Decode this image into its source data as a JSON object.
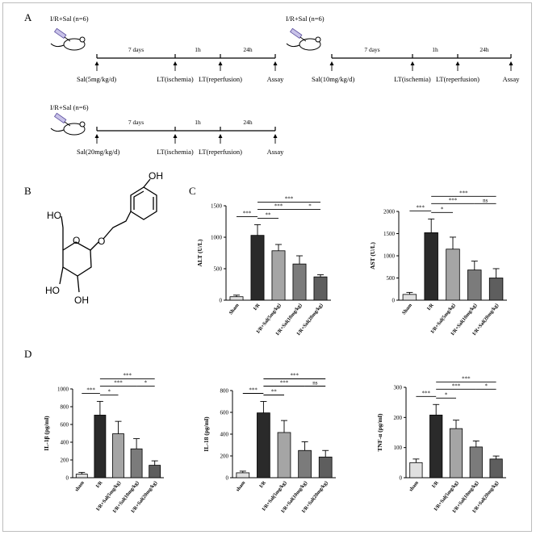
{
  "panel_labels": {
    "a": "A",
    "b": "B",
    "c": "C",
    "d": "D"
  },
  "timelines": [
    {
      "group": "I/R+Sal (n=6)",
      "dose": "Sal(5mg/kg/d)",
      "period1": "7 days",
      "period2": "1h",
      "period3": "24h",
      "ischemia": "LT(ischemia)",
      "reperfusion": "LT(reperfusion)",
      "assay": "Assay"
    },
    {
      "group": "I/R+Sal (n=6)",
      "dose": "Sal(10mg/kg/d)",
      "period1": "7 days",
      "period2": "1h",
      "period3": "24h",
      "ischemia": "LT(ischemia)",
      "reperfusion": "LT(reperfusion)",
      "assay": "Assay"
    },
    {
      "group": "I/R+Sal (n=6)",
      "dose": "Sal(20mg/kg/d)",
      "period1": "7 days",
      "period2": "1h",
      "period3": "24h",
      "ischemia": "LT(ischemia)",
      "reperfusion": "LT(reperfusion)",
      "assay": "Assay"
    }
  ],
  "structure_labels": {
    "ho1": "HO",
    "oh1": "OH",
    "ho2": "HO",
    "oh2": "OH",
    "o_ring": "O",
    "o_link": "O"
  },
  "chart_data": [
    {
      "type": "bar",
      "ylabel": "ALT (U/L)",
      "ylim": [
        0,
        1500
      ],
      "yticks": [
        0,
        500,
        1000,
        1500
      ],
      "categories": [
        "Sham",
        "I/R",
        "I/R+Sal(5mg/kg)",
        "I/R+Sal(10mg/kg)",
        "I/R+Sal(20mg/kg)"
      ],
      "values": [
        55,
        1030,
        785,
        575,
        370
      ],
      "errors": [
        25,
        170,
        100,
        130,
        35
      ],
      "colors": [
        "#e0e0e0",
        "#2a2a2a",
        "#a5a5a5",
        "#7b7b7b",
        "#5e5e5e"
      ],
      "significance": [
        {
          "from": 0,
          "to": 1,
          "label": "***"
        },
        {
          "from": 1,
          "to": 2,
          "label": "**"
        },
        {
          "from": 1,
          "to": 3,
          "label": "***"
        },
        {
          "from": 3,
          "to": 4,
          "label": "*"
        },
        {
          "from": 1,
          "to": 4,
          "label": "***"
        }
      ]
    },
    {
      "type": "bar",
      "ylabel": "AST (U/L)",
      "ylim": [
        0,
        2000
      ],
      "yticks": [
        0,
        500,
        1000,
        1500,
        2000
      ],
      "categories": [
        "Sham",
        "I/R",
        "I/R+Sal(5mg/kg)",
        "I/R+Sal(10mg/kg)",
        "I/R+Sal(20mg/kg)"
      ],
      "values": [
        130,
        1520,
        1150,
        680,
        500
      ],
      "errors": [
        45,
        310,
        270,
        200,
        210
      ],
      "colors": [
        "#e0e0e0",
        "#2a2a2a",
        "#a5a5a5",
        "#7b7b7b",
        "#5e5e5e"
      ],
      "significance": [
        {
          "from": 0,
          "to": 1,
          "label": "***"
        },
        {
          "from": 1,
          "to": 2,
          "label": "*"
        },
        {
          "from": 1,
          "to": 3,
          "label": "***"
        },
        {
          "from": 3,
          "to": 4,
          "label": "ns"
        },
        {
          "from": 1,
          "to": 4,
          "label": "***"
        }
      ]
    },
    {
      "type": "bar",
      "ylabel": "IL-1β (pg/ml)",
      "ylim": [
        0,
        1000
      ],
      "yticks": [
        0,
        200,
        400,
        600,
        800,
        1000
      ],
      "categories": [
        "sham",
        "I/R",
        "I/R+Sal(5mg/kg)",
        "I/R+Sal(10mg/kg)",
        "I/R+Sal(20mg/kg)"
      ],
      "values": [
        40,
        705,
        495,
        325,
        140
      ],
      "errors": [
        20,
        155,
        140,
        115,
        50
      ],
      "colors": [
        "#e0e0e0",
        "#2a2a2a",
        "#a5a5a5",
        "#7b7b7b",
        "#5e5e5e"
      ],
      "significance": [
        {
          "from": 0,
          "to": 1,
          "label": "***"
        },
        {
          "from": 1,
          "to": 2,
          "label": "*"
        },
        {
          "from": 1,
          "to": 3,
          "label": "***"
        },
        {
          "from": 3,
          "to": 4,
          "label": "*"
        },
        {
          "from": 1,
          "to": 4,
          "label": "***"
        }
      ]
    },
    {
      "type": "bar",
      "ylabel": "IL-18 (pg/ml)",
      "ylim": [
        0,
        800
      ],
      "yticks": [
        0,
        200,
        400,
        600,
        800
      ],
      "categories": [
        "sham",
        "I/R",
        "I/R+Sal(5mg/kg)",
        "I/R+Sal(10mg/kg)",
        "I/R+Sal(20mg/kg)"
      ],
      "values": [
        45,
        595,
        415,
        250,
        190
      ],
      "errors": [
        15,
        105,
        110,
        80,
        60
      ],
      "colors": [
        "#e0e0e0",
        "#2a2a2a",
        "#a5a5a5",
        "#7b7b7b",
        "#5e5e5e"
      ],
      "significance": [
        {
          "from": 0,
          "to": 1,
          "label": "***"
        },
        {
          "from": 1,
          "to": 2,
          "label": "**"
        },
        {
          "from": 1,
          "to": 3,
          "label": "***"
        },
        {
          "from": 3,
          "to": 4,
          "label": "ns"
        },
        {
          "from": 1,
          "to": 4,
          "label": "***"
        }
      ]
    },
    {
      "type": "bar",
      "ylabel": "TNF-α (pg/ml)",
      "ylim": [
        0,
        300
      ],
      "yticks": [
        0,
        100,
        200,
        300
      ],
      "categories": [
        "sham",
        "I/R",
        "I/R+Sal(5mg/kg)",
        "I/R+Sal(10mg/kg)",
        "I/R+Sal(20mg/kg)"
      ],
      "values": [
        50,
        208,
        163,
        102,
        62
      ],
      "errors": [
        12,
        35,
        28,
        20,
        10
      ],
      "colors": [
        "#e0e0e0",
        "#2a2a2a",
        "#a5a5a5",
        "#7b7b7b",
        "#5e5e5e"
      ],
      "significance": [
        {
          "from": 0,
          "to": 1,
          "label": "***"
        },
        {
          "from": 1,
          "to": 2,
          "label": "*"
        },
        {
          "from": 1,
          "to": 3,
          "label": "***"
        },
        {
          "from": 3,
          "to": 4,
          "label": "*"
        },
        {
          "from": 1,
          "to": 4,
          "label": "***"
        }
      ]
    }
  ]
}
